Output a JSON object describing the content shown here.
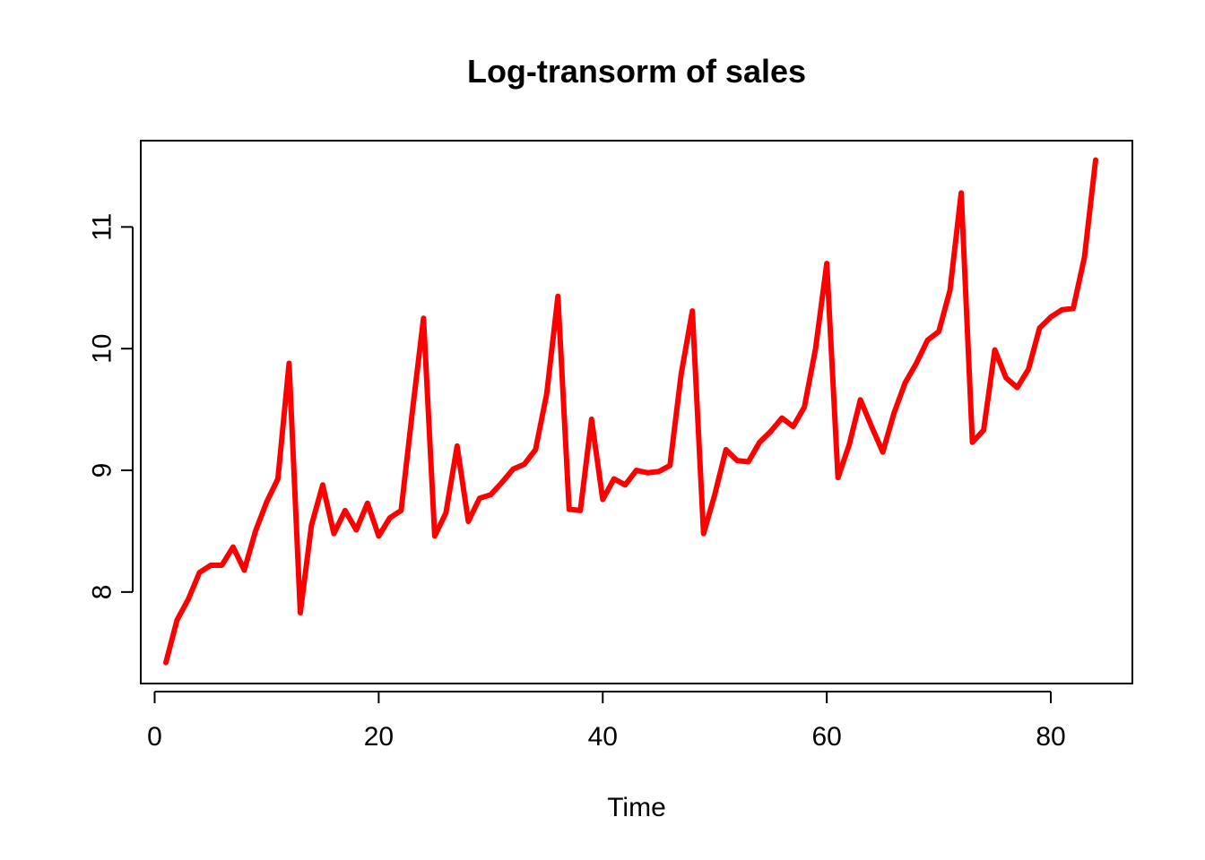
{
  "chart_data": {
    "type": "line",
    "title": "Log-transorm of sales",
    "xlabel": "Time",
    "ylabel": "",
    "xlim": [
      1,
      84
    ],
    "ylim": [
      7.41,
      11.54
    ],
    "x_ticks": [
      0,
      20,
      40,
      60,
      80
    ],
    "y_ticks": [
      8,
      9,
      10,
      11
    ],
    "x_tick_labels": [
      "0",
      "20",
      "40",
      "60",
      "80"
    ],
    "y_tick_labels": [
      "8",
      "9",
      "10",
      "11"
    ],
    "grid": false,
    "legend": "none",
    "line_color": "#ff0000",
    "series": [
      {
        "x": [
          1,
          2,
          3,
          4,
          5,
          6,
          7,
          8,
          9,
          10,
          11,
          12,
          13,
          14,
          15,
          16,
          17,
          18,
          19,
          20,
          21,
          22,
          23,
          24,
          25,
          26,
          27,
          28,
          29,
          30,
          31,
          32,
          33,
          34,
          35,
          36,
          37,
          38,
          39,
          40,
          41,
          42,
          43,
          44,
          45,
          46,
          47,
          48,
          49,
          50,
          51,
          52,
          53,
          54,
          55,
          56,
          57,
          58,
          59,
          60,
          61,
          62,
          63,
          64,
          65,
          66,
          67,
          68,
          69,
          70,
          71,
          72,
          73,
          74,
          75,
          76,
          77,
          78,
          79,
          80,
          81,
          82,
          83,
          84
        ],
        "values": [
          7.42,
          7.77,
          7.94,
          8.16,
          8.22,
          8.22,
          8.37,
          8.18,
          8.5,
          8.74,
          8.93,
          9.88,
          7.83,
          8.55,
          8.88,
          8.48,
          8.67,
          8.51,
          8.73,
          8.46,
          8.61,
          8.67,
          9.48,
          10.25,
          8.46,
          8.65,
          9.2,
          8.58,
          8.77,
          8.8,
          8.9,
          9.01,
          9.05,
          9.17,
          9.63,
          10.43,
          8.68,
          8.67,
          9.42,
          8.76,
          8.93,
          8.88,
          9.0,
          8.98,
          8.99,
          9.04,
          9.79,
          10.31,
          8.48,
          8.8,
          9.17,
          9.08,
          9.07,
          9.23,
          9.32,
          9.43,
          9.36,
          9.52,
          10.0,
          10.7,
          8.94,
          9.21,
          9.58,
          9.36,
          9.15,
          9.47,
          9.72,
          9.88,
          10.07,
          10.14,
          10.48,
          11.28,
          9.23,
          9.33,
          9.99,
          9.76,
          9.68,
          9.83,
          10.17,
          10.26,
          10.32,
          10.33,
          10.75,
          11.55
        ]
      }
    ]
  }
}
